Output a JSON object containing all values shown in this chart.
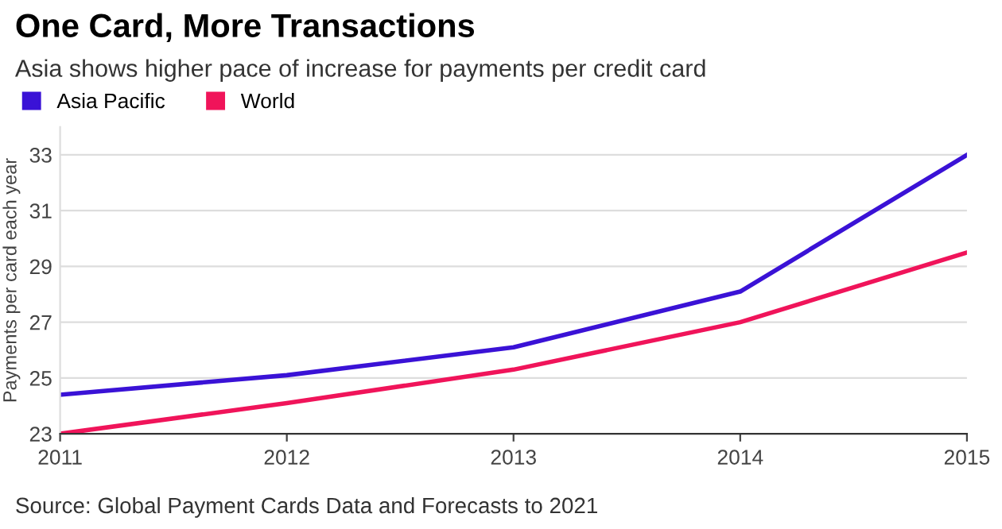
{
  "chart_data": {
    "type": "line",
    "title": "One Card, More Transactions",
    "subtitle": "Asia shows higher pace of increase for payments per credit card",
    "ylabel": "Payments per card each year",
    "x": [
      2011,
      2012,
      2013,
      2014,
      2015
    ],
    "series": [
      {
        "name": "Asia Pacific",
        "color": "#3a12d6",
        "values": [
          24.4,
          25.1,
          26.1,
          28.1,
          33.0
        ]
      },
      {
        "name": "World",
        "color": "#f0145a",
        "values": [
          23.0,
          24.1,
          25.3,
          27.0,
          29.5
        ]
      }
    ],
    "xlim": [
      2011,
      2015
    ],
    "xticks": [
      2011,
      2012,
      2013,
      2014,
      2015
    ],
    "ylim": [
      23,
      34
    ],
    "yticks": [
      23,
      25,
      27,
      29,
      31,
      33
    ],
    "grid": "y",
    "legend": "top left",
    "marker": "none",
    "line_style": "solid",
    "annotations": [
      "Source: Global Payment Cards Data and Forecasts to 2021"
    ]
  }
}
